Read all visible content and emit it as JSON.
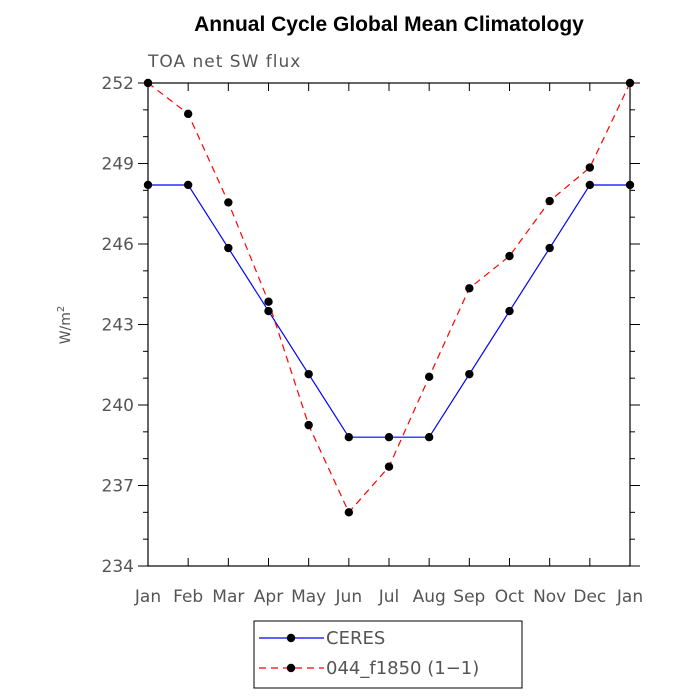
{
  "chart_data": {
    "type": "line",
    "title": "Annual Cycle Global Mean Climatology",
    "subtitle": "TOA net SW flux",
    "ylabel_base": "W/m",
    "ylabel_sup": "2",
    "categories": [
      "Jan",
      "Feb",
      "Mar",
      "Apr",
      "May",
      "Jun",
      "Jul",
      "Aug",
      "Sep",
      "Oct",
      "Nov",
      "Dec",
      "Jan"
    ],
    "ylim": [
      234,
      252
    ],
    "yticks": [
      234,
      237,
      240,
      243,
      246,
      249,
      252
    ],
    "series": [
      {
        "name": "CERES",
        "color": "#0000ff",
        "dash": "solid",
        "values": [
          248.2,
          248.2,
          245.85,
          243.5,
          241.15,
          238.8,
          238.8,
          238.8,
          241.15,
          243.5,
          245.85,
          248.2,
          248.2
        ]
      },
      {
        "name": "044_f1850 (1−1)",
        "color": "#ff0000",
        "dash": "dashed",
        "values": [
          252.0,
          250.85,
          247.55,
          243.85,
          239.25,
          236.0,
          237.7,
          241.05,
          244.35,
          245.55,
          247.6,
          248.85,
          252.0
        ]
      }
    ],
    "marker_color": "#000000",
    "legend_position": "bottom-center"
  }
}
